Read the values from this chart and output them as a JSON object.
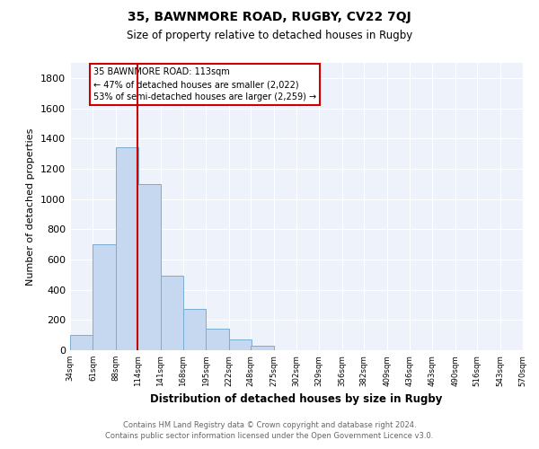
{
  "title": "35, BAWNMORE ROAD, RUGBY, CV22 7QJ",
  "subtitle": "Size of property relative to detached houses in Rugby",
  "xlabel": "Distribution of detached houses by size in Rugby",
  "ylabel": "Number of detached properties",
  "bar_values": [
    100,
    700,
    1340,
    1100,
    490,
    275,
    140,
    70,
    30,
    0,
    0,
    0,
    0,
    0,
    0,
    0,
    0,
    0,
    0,
    0
  ],
  "bin_edges": [
    34,
    61,
    88,
    114,
    141,
    168,
    195,
    222,
    248,
    275,
    302,
    329,
    356,
    382,
    409,
    436,
    463,
    490,
    516,
    543,
    570
  ],
  "tick_labels": [
    "34sqm",
    "61sqm",
    "88sqm",
    "114sqm",
    "141sqm",
    "168sqm",
    "195sqm",
    "222sqm",
    "248sqm",
    "275sqm",
    "302sqm",
    "329sqm",
    "356sqm",
    "382sqm",
    "409sqm",
    "436sqm",
    "463sqm",
    "490sqm",
    "516sqm",
    "543sqm",
    "570sqm"
  ],
  "bar_color": "#c5d8f0",
  "bar_edge_color": "#7aadd4",
  "vline_x": 114,
  "vline_color": "#cc0000",
  "annotation_title": "35 BAWNMORE ROAD: 113sqm",
  "annotation_line1": "← 47% of detached houses are smaller (2,022)",
  "annotation_line2": "53% of semi-detached houses are larger (2,259) →",
  "annotation_box_color": "#ffffff",
  "annotation_box_edge_color": "#cc0000",
  "ylim": [
    0,
    1900
  ],
  "yticks": [
    0,
    200,
    400,
    600,
    800,
    1000,
    1200,
    1400,
    1600,
    1800
  ],
  "footnote1": "Contains HM Land Registry data © Crown copyright and database right 2024.",
  "footnote2": "Contains public sector information licensed under the Open Government Licence v3.0.",
  "bg_color": "#eef2fa"
}
